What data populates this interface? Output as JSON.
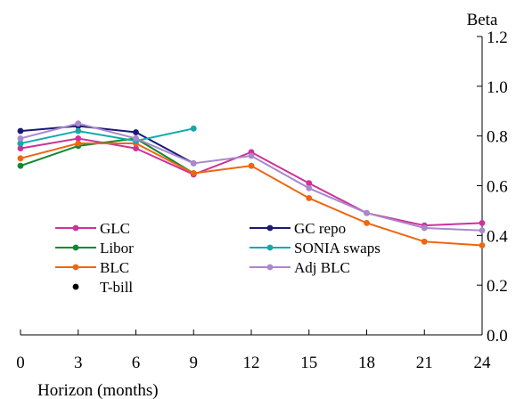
{
  "chart_data": {
    "type": "line",
    "title": "",
    "xlabel": "Horizon (months)",
    "ylabel": "Beta",
    "xlim": [
      0,
      24
    ],
    "ylim": [
      0.0,
      1.2
    ],
    "x_ticks": [
      0,
      3,
      6,
      9,
      12,
      15,
      18,
      21,
      24
    ],
    "y_ticks": [
      0.0,
      0.2,
      0.4,
      0.6,
      0.8,
      1.0,
      1.2
    ],
    "y_tick_labels": [
      "0.0",
      "0.2",
      "0.4",
      "0.6",
      "0.8",
      "1.0",
      "1.2"
    ],
    "y_axis_side": "right",
    "grid": false,
    "legend_position": "lower-left",
    "series": [
      {
        "name": "GLC",
        "color": "#cc3399",
        "x": [
          0,
          3,
          6,
          9,
          12,
          15,
          18,
          21,
          24
        ],
        "y": [
          0.75,
          0.79,
          0.75,
          0.645,
          0.735,
          0.61,
          0.49,
          0.44,
          0.45
        ]
      },
      {
        "name": "Libor",
        "color": "#118833",
        "x": [
          0,
          3,
          6,
          9
        ],
        "y": [
          0.68,
          0.76,
          0.79,
          0.65
        ]
      },
      {
        "name": "BLC",
        "color": "#ee6611",
        "x": [
          0,
          3,
          6,
          9,
          12,
          15,
          18,
          21,
          24
        ],
        "y": [
          0.71,
          0.77,
          0.77,
          0.65,
          0.68,
          0.55,
          0.45,
          0.375,
          0.36
        ]
      },
      {
        "name": "T-bill",
        "color": "#000000",
        "x": [
          0
        ],
        "y": [
          0.77
        ]
      },
      {
        "name": "GC repo",
        "color": "#1a1a77",
        "x": [
          0,
          3,
          6,
          9
        ],
        "y": [
          0.82,
          0.84,
          0.815,
          0.69
        ]
      },
      {
        "name": "SONIA swaps",
        "color": "#11aaaa",
        "x": [
          0,
          3,
          6,
          9
        ],
        "y": [
          0.77,
          0.82,
          0.78,
          0.83
        ]
      },
      {
        "name": "Adj BLC",
        "color": "#aa88cc",
        "x": [
          0,
          3,
          6,
          9,
          12,
          15,
          18,
          21,
          24
        ],
        "y": [
          0.79,
          0.85,
          0.79,
          0.69,
          0.72,
          0.59,
          0.49,
          0.43,
          0.42
        ]
      }
    ]
  }
}
